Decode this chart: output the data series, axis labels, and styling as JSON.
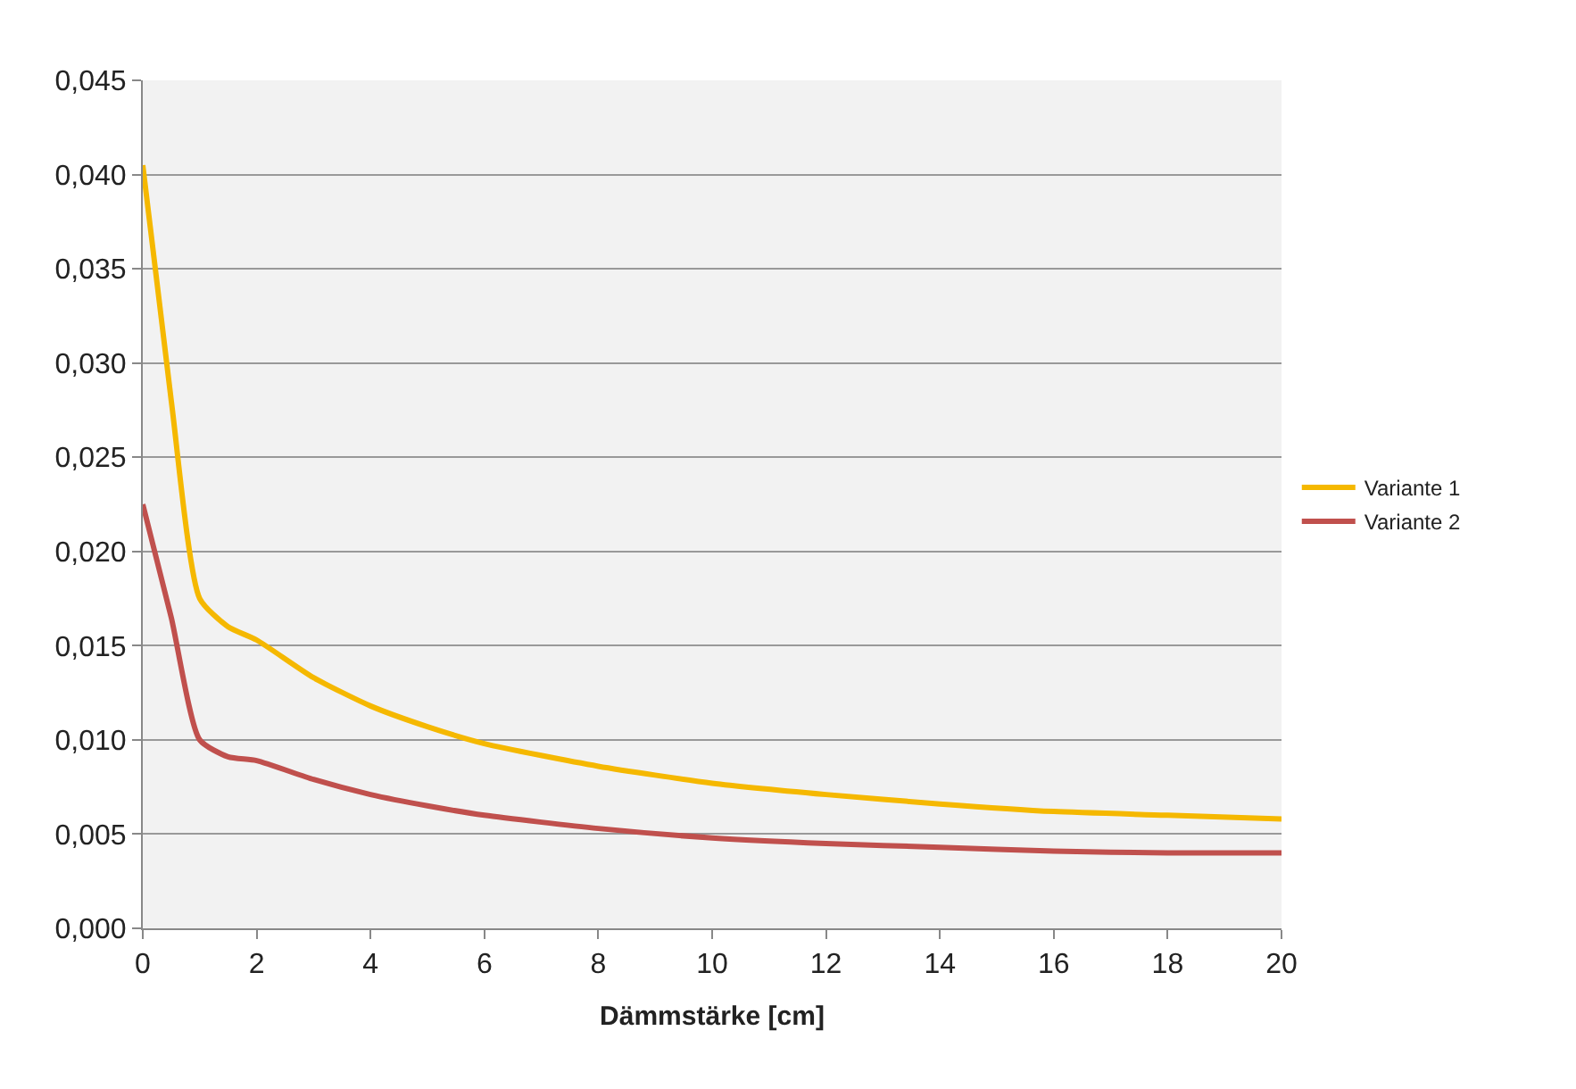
{
  "chart_data": {
    "type": "line",
    "xlabel": "Dämmstärke [cm]",
    "series": [
      {
        "name": "Variante 1",
        "color": "#f5b800",
        "x": [
          0,
          0.5,
          1,
          1.5,
          2,
          3,
          4,
          5,
          6,
          8,
          10,
          12,
          14,
          16,
          18,
          20
        ],
        "values": [
          0.0405,
          0.028,
          0.0175,
          0.016,
          0.0153,
          0.0133,
          0.0118,
          0.0107,
          0.0098,
          0.0086,
          0.0077,
          0.0071,
          0.0066,
          0.0062,
          0.006,
          0.0058
        ]
      },
      {
        "name": "Variante 2",
        "color": "#c0504d",
        "x": [
          0,
          0.5,
          1,
          1.5,
          2,
          3,
          4,
          5,
          6,
          8,
          10,
          12,
          14,
          16,
          18,
          20
        ],
        "values": [
          0.0225,
          0.0165,
          0.01,
          0.0091,
          0.0089,
          0.0079,
          0.0071,
          0.0065,
          0.006,
          0.0053,
          0.0048,
          0.0045,
          0.0043,
          0.0041,
          0.004,
          0.004
        ]
      }
    ],
    "xlim": [
      0,
      20
    ],
    "xticks": [
      0,
      2,
      4,
      6,
      8,
      10,
      12,
      14,
      16,
      18,
      20
    ],
    "ylim": [
      0,
      0.045
    ],
    "yticks": [
      {
        "value": 0,
        "label": "0,000"
      },
      {
        "value": 0.005,
        "label": "0,005"
      },
      {
        "value": 0.01,
        "label": "0,010"
      },
      {
        "value": 0.015,
        "label": "0,015"
      },
      {
        "value": 0.02,
        "label": "0,020"
      },
      {
        "value": 0.025,
        "label": "0,025"
      },
      {
        "value": 0.03,
        "label": "0,030"
      },
      {
        "value": 0.035,
        "label": "0,035"
      },
      {
        "value": 0.04,
        "label": "0,040"
      },
      {
        "value": 0.045,
        "label": "0,045"
      }
    ],
    "grid": "y",
    "legend": "right",
    "marker": "none",
    "line_style": "solid"
  }
}
